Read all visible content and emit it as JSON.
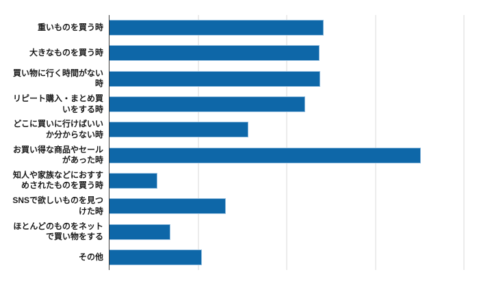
{
  "chart_data": {
    "type": "bar",
    "orientation": "horizontal",
    "title": "",
    "xlabel": "",
    "ylabel": "",
    "categories": [
      "重いものを買う時",
      "大きなものを買う時",
      "買い物に行く時間がない時",
      "リピート購入・まとめ買いをする時",
      "どこに買いに行けばいいか分からない時",
      "お買い得な商品やセールがあった時",
      "知人や家族などにおすすめされたものを買う時",
      "SNSで欲しいものを見つけた時",
      "ほとんどのものをネットで買い物をする",
      "その他"
    ],
    "display_labels": [
      "重いものを買う時",
      "大きなものを買う時",
      "買い物に行く時間がない\n時",
      "リピート購入・まとめ買\nいをする時",
      "どこに買いに行けばいい\nか分からない時",
      "お買い得な商品やセール\nがあった時",
      "知人や家族などにおすす\nめされたものを買う時",
      "SNSで欲しいものを見つ\nけた時",
      "ほとんどのものをネット\nで買い物をする",
      "その他"
    ],
    "values": [
      24.2,
      23.7,
      23.8,
      22.1,
      15.7,
      35.1,
      5.4,
      13.1,
      6.9,
      10.4
    ],
    "xlim": [
      0,
      40
    ],
    "gridline_step": 10,
    "gridline_values": [
      10,
      20,
      30,
      40
    ],
    "grid": "vertical-only",
    "tick_labels_visible": false,
    "legend": "none",
    "colors": {
      "bar": "#0e67a8",
      "bar_edge": "#94bedf",
      "axis_line": "#3a3a3a",
      "gridline": "#d9d9d9",
      "label_text": "#1a1a1a",
      "background": "#ffffff"
    }
  }
}
